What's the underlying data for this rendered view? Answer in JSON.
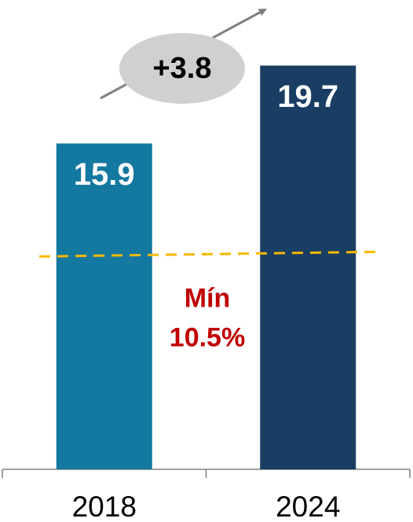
{
  "chart_data": {
    "type": "bar",
    "categories": [
      "2018",
      "2024"
    ],
    "values": [
      15.9,
      19.7
    ],
    "colors": [
      "#1479a0",
      "#1a3d63"
    ],
    "ylim": [
      0,
      22.9
    ],
    "annotation": "+3.8",
    "threshold": {
      "value": 10.5,
      "label": "Mín",
      "value_label": "10.5%",
      "color": "#f5b800"
    }
  }
}
